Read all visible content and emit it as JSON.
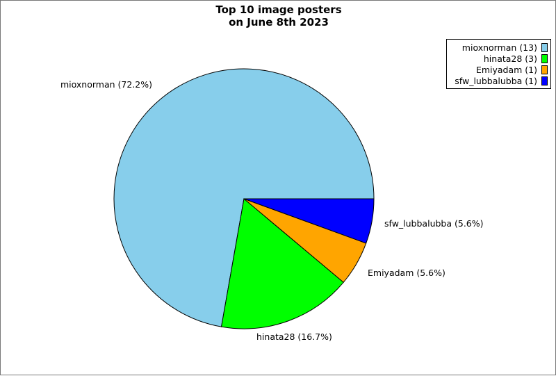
{
  "title": {
    "line1": "Top 10 image posters",
    "line2": "on June 8th 2023"
  },
  "chart_data": {
    "type": "pie",
    "title": "Top 10 image posters on June 8th 2023",
    "slices": [
      {
        "name": "mioxnorman",
        "count": 13,
        "percent": 72.2,
        "color": "#87ceeb",
        "label": "mioxnorman (72.2%)",
        "legend": "mioxnorman (13)"
      },
      {
        "name": "hinata28",
        "count": 3,
        "percent": 16.7,
        "color": "#00ff00",
        "label": "hinata28 (16.7%)",
        "legend": "hinata28 (3)"
      },
      {
        "name": "Emiyadam",
        "count": 1,
        "percent": 5.6,
        "color": "#ffa500",
        "label": "Emiyadam (5.6%)",
        "legend": "Emiyadam (1)"
      },
      {
        "name": "sfw_lubbalubba",
        "count": 1,
        "percent": 5.6,
        "color": "#0000ff",
        "label": "sfw_lubbalubba (5.6%)",
        "legend": "sfw_lubbalubba (1)"
      }
    ],
    "start_angle": "3 o'clock",
    "direction": "counter-clockwise",
    "legend_position": "top-right"
  }
}
